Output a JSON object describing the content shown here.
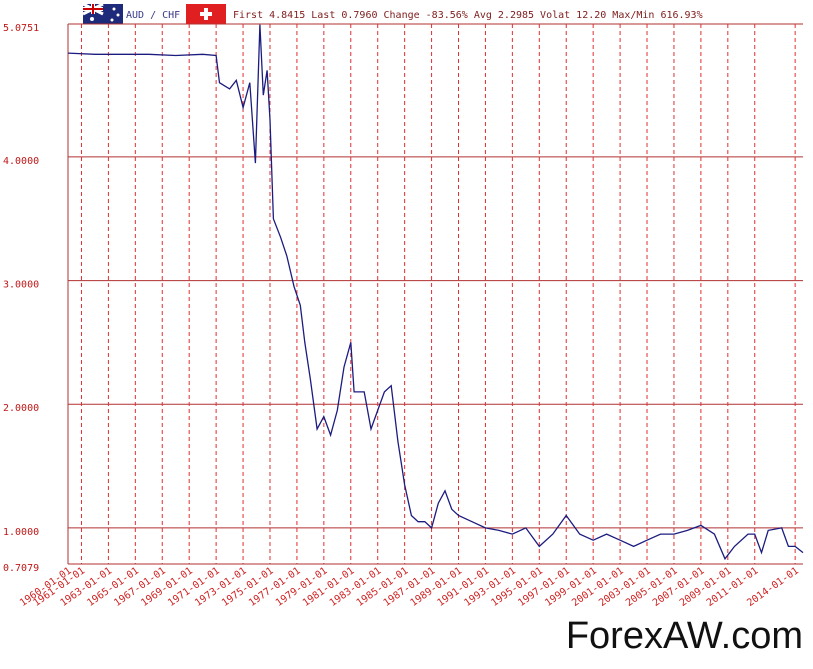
{
  "chart_data": {
    "type": "line",
    "title": "AUD / CHF",
    "subtitle": "First 4.8415 Last 0.7960 Change -83.56% Avg 2.2985 Volat 12.20 Max/Min 616.93%",
    "watermark": "ForexAW.com",
    "grid": true,
    "xlim": [
      "1960-01-01",
      "2014-08-01"
    ],
    "ylim": [
      0.7079,
      5.0751
    ],
    "yticks": [
      {
        "value": 0.7079,
        "label": "0.7079"
      },
      {
        "value": 1,
        "label": "1.0000"
      },
      {
        "value": 2,
        "label": "2.0000"
      },
      {
        "value": 3,
        "label": "3.0000"
      },
      {
        "value": 4,
        "label": "4.0000"
      },
      {
        "value": 5.0751,
        "label": "5.0751"
      }
    ],
    "xticks": [
      "1960-01-01",
      "1961-01-01",
      "1963-01-01",
      "1965-01-01",
      "1967-01-01",
      "1969-01-01",
      "1971-01-01",
      "1973-01-01",
      "1975-01-01",
      "1977-01-01",
      "1979-01-01",
      "1981-01-01",
      "1983-01-01",
      "1985-01-01",
      "1987-01-01",
      "1989-01-01",
      "1991-01-01",
      "1993-01-01",
      "1995-01-01",
      "1997-01-01",
      "1999-01-01",
      "2001-01-01",
      "2003-01-01",
      "2005-01-01",
      "2007-01-01",
      "2009-01-01",
      "2011-01-01",
      "2014-01-01"
    ],
    "series": [
      {
        "name": "AUD / CHF",
        "color": "#1c1c80",
        "x": [
          "1960-01-01",
          "1962-01-01",
          "1964-01-01",
          "1966-01-01",
          "1968-01-01",
          "1970-01-01",
          "1971-01-01",
          "1971-04-01",
          "1972-01-01",
          "1972-07-01",
          "1973-01-01",
          "1973-07-01",
          "1973-12-01",
          "1974-04-01",
          "1974-07-01",
          "1974-10-15",
          "1975-01-01",
          "1975-04-01",
          "1975-10-15",
          "1976-04-01",
          "1976-10-15",
          "1977-04-01",
          "1977-08-01",
          "1978-01-01",
          "1978-07-01",
          "1979-01-01",
          "1979-07-01",
          "1980-01-01",
          "1980-07-01",
          "1981-01-01",
          "1981-04-01",
          "1982-01-01",
          "1982-07-01",
          "1983-01-01",
          "1983-07-01",
          "1984-01-01",
          "1984-07-01",
          "1985-01-01",
          "1985-07-01",
          "1986-01-01",
          "1986-07-01",
          "1987-01-01",
          "1987-07-01",
          "1988-01-01",
          "1988-07-01",
          "1989-01-01",
          "1990-01-01",
          "1991-01-01",
          "1992-01-01",
          "1993-01-01",
          "1994-01-01",
          "1995-01-01",
          "1996-01-01",
          "1997-01-01",
          "1998-01-01",
          "1999-01-01",
          "2000-01-01",
          "2001-01-01",
          "2002-01-01",
          "2003-01-01",
          "2004-01-01",
          "2005-01-01",
          "2006-01-01",
          "2007-01-01",
          "2008-01-01",
          "2008-10-15",
          "2009-07-01",
          "2010-07-01",
          "2011-01-01",
          "2011-07-01",
          "2012-01-01",
          "2013-01-01",
          "2013-07-01",
          "2014-01-01",
          "2014-08-01"
        ],
        "values": [
          4.84,
          4.83,
          4.83,
          4.83,
          4.82,
          4.83,
          4.82,
          4.6,
          4.55,
          4.62,
          4.4,
          4.6,
          3.95,
          5.07,
          4.5,
          4.7,
          4.3,
          3.5,
          3.35,
          3.2,
          2.95,
          2.8,
          2.5,
          2.2,
          1.8,
          1.9,
          1.75,
          1.95,
          2.3,
          2.5,
          2.1,
          2.1,
          1.8,
          1.95,
          2.1,
          2.15,
          1.7,
          1.35,
          1.1,
          1.05,
          1.05,
          1.0,
          1.2,
          1.3,
          1.15,
          1.1,
          1.05,
          1.0,
          0.98,
          0.95,
          1.0,
          0.85,
          0.95,
          1.1,
          0.95,
          0.9,
          0.95,
          0.9,
          0.85,
          0.9,
          0.95,
          0.95,
          0.98,
          1.02,
          0.95,
          0.75,
          0.85,
          0.95,
          0.95,
          0.8,
          0.98,
          1.0,
          0.85,
          0.85,
          0.8
        ]
      }
    ]
  }
}
